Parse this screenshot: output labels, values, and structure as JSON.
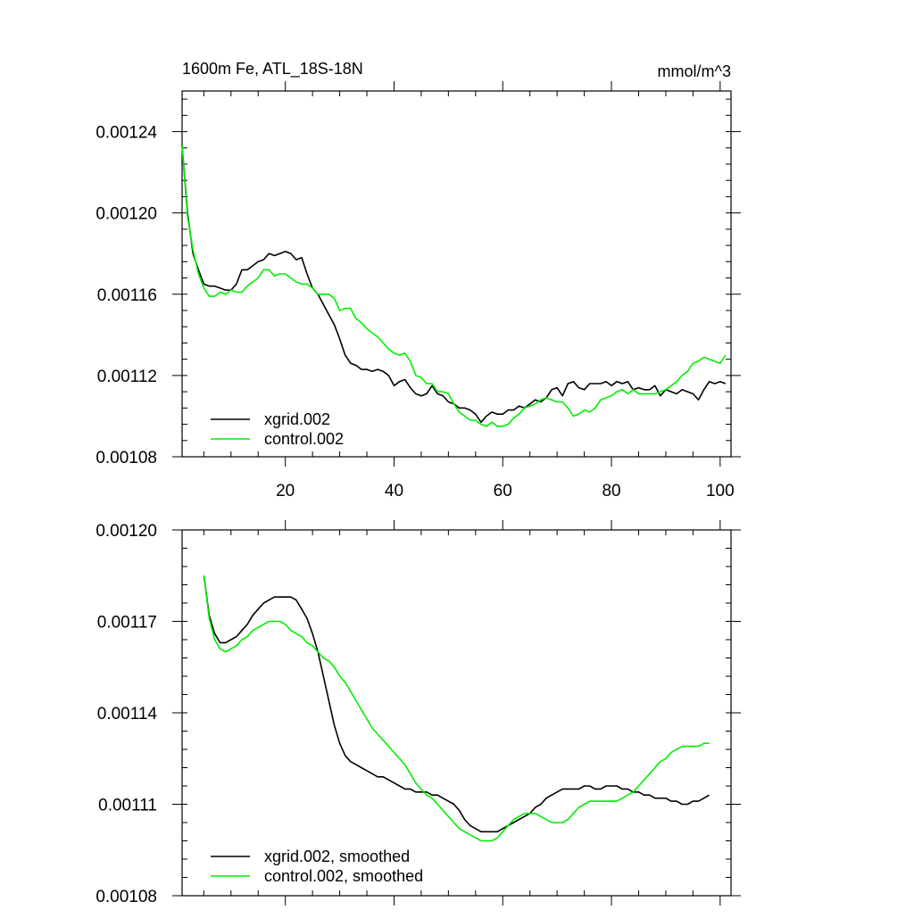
{
  "chart_data": [
    {
      "type": "line",
      "title": "1600m Fe, ATL_18S-18N",
      "units": "mmol/m^3",
      "xlim": [
        1,
        102
      ],
      "ylim": [
        0.00108,
        0.00126
      ],
      "xticks": [
        20,
        40,
        60,
        80,
        100
      ],
      "xtick_labels": [
        "20",
        "40",
        "60",
        "80",
        "100"
      ],
      "yticks": [
        0.00108,
        0.00112,
        0.00116,
        0.0012,
        0.00124
      ],
      "ytick_labels": [
        "0.00108",
        "0.00112",
        "0.00116",
        "0.00120",
        "0.00124"
      ],
      "legend_position": "bottom-left",
      "series": [
        {
          "name": "xgrid.002",
          "color": "#000000",
          "x": [
            1,
            2,
            3,
            4,
            5,
            6,
            7,
            8,
            9,
            10,
            11,
            12,
            13,
            14,
            15,
            16,
            17,
            18,
            19,
            20,
            21,
            22,
            23,
            24,
            25,
            26,
            27,
            28,
            29,
            30,
            31,
            32,
            33,
            34,
            35,
            36,
            37,
            38,
            39,
            40,
            41,
            42,
            43,
            44,
            45,
            46,
            47,
            48,
            49,
            50,
            51,
            52,
            53,
            54,
            55,
            56,
            57,
            58,
            59,
            60,
            61,
            62,
            63,
            64,
            65,
            66,
            67,
            68,
            69,
            70,
            71,
            72,
            73,
            74,
            75,
            76,
            77,
            78,
            79,
            80,
            81,
            82,
            83,
            84,
            85,
            86,
            87,
            88,
            89,
            90,
            91,
            92,
            93,
            94,
            95,
            96,
            97,
            98,
            99,
            100,
            101
          ],
          "values": [
            0.001233,
            0.0012,
            0.00118,
            0.001172,
            0.001165,
            0.001164,
            0.001164,
            0.001163,
            0.001162,
            0.001162,
            0.001165,
            0.001172,
            0.001172,
            0.001174,
            0.001176,
            0.001177,
            0.00118,
            0.001179,
            0.00118,
            0.001181,
            0.00118,
            0.001177,
            0.001178,
            0.00117,
            0.001163,
            0.00116,
            0.001155,
            0.00115,
            0.001145,
            0.001138,
            0.00113,
            0.001126,
            0.001125,
            0.001123,
            0.001123,
            0.001122,
            0.001123,
            0.001122,
            0.00112,
            0.001115,
            0.001117,
            0.001118,
            0.001114,
            0.001111,
            0.00111,
            0.001111,
            0.001115,
            0.001111,
            0.00111,
            0.001107,
            0.001106,
            0.001104,
            0.001104,
            0.001103,
            0.001101,
            0.001097,
            0.0011,
            0.001102,
            0.001101,
            0.001101,
            0.001103,
            0.001103,
            0.001105,
            0.001104,
            0.001106,
            0.001108,
            0.001107,
            0.001109,
            0.001113,
            0.001114,
            0.00111,
            0.001116,
            0.001117,
            0.001114,
            0.001113,
            0.001116,
            0.001116,
            0.001116,
            0.001117,
            0.001115,
            0.001117,
            0.001116,
            0.001117,
            0.001113,
            0.001114,
            0.001113,
            0.001113,
            0.001115,
            0.00111,
            0.001113,
            0.001112,
            0.001111,
            0.001113,
            0.001112,
            0.001111,
            0.001108,
            0.001113,
            0.001117,
            0.001116,
            0.001117,
            0.001116
          ]
        },
        {
          "name": "control.002",
          "color": "#00ee00",
          "x": [
            1,
            2,
            3,
            4,
            5,
            6,
            7,
            8,
            9,
            10,
            11,
            12,
            13,
            14,
            15,
            16,
            17,
            18,
            19,
            20,
            21,
            22,
            23,
            24,
            25,
            26,
            27,
            28,
            29,
            30,
            31,
            32,
            33,
            34,
            35,
            36,
            37,
            38,
            39,
            40,
            41,
            42,
            43,
            44,
            45,
            46,
            47,
            48,
            49,
            50,
            51,
            52,
            53,
            54,
            55,
            56,
            57,
            58,
            59,
            60,
            61,
            62,
            63,
            64,
            65,
            66,
            67,
            68,
            69,
            70,
            71,
            72,
            73,
            74,
            75,
            76,
            77,
            78,
            79,
            80,
            81,
            82,
            83,
            84,
            85,
            86,
            87,
            88,
            89,
            90,
            91,
            92,
            93,
            94,
            95,
            96,
            97,
            98,
            99,
            100,
            101
          ],
          "values": [
            0.001233,
            0.001198,
            0.001182,
            0.00117,
            0.001163,
            0.001159,
            0.001159,
            0.001161,
            0.00116,
            0.001162,
            0.001161,
            0.001161,
            0.001164,
            0.001166,
            0.001168,
            0.001172,
            0.001172,
            0.001169,
            0.00117,
            0.00117,
            0.001168,
            0.001166,
            0.001165,
            0.001165,
            0.001163,
            0.00116,
            0.00116,
            0.00116,
            0.001158,
            0.001152,
            0.001153,
            0.001153,
            0.001148,
            0.001146,
            0.001143,
            0.001141,
            0.001139,
            0.001136,
            0.001133,
            0.001131,
            0.00113,
            0.001131,
            0.001127,
            0.00112,
            0.001119,
            0.001116,
            0.001116,
            0.001112,
            0.001112,
            0.001111,
            0.001106,
            0.001102,
            0.0011,
            0.001098,
            0.001098,
            0.001096,
            0.001095,
            0.001097,
            0.001095,
            0.001095,
            0.001096,
            0.001099,
            0.001101,
            0.001104,
            0.001105,
            0.001106,
            0.001108,
            0.001109,
            0.001108,
            0.001107,
            0.001107,
            0.001104,
            0.0011,
            0.001101,
            0.001103,
            0.001102,
            0.001104,
            0.001108,
            0.001109,
            0.00111,
            0.001112,
            0.001113,
            0.001111,
            0.001113,
            0.001111,
            0.001111,
            0.001111,
            0.001111,
            0.001112,
            0.001113,
            0.001115,
            0.001117,
            0.00112,
            0.001122,
            0.001126,
            0.001127,
            0.001129,
            0.001128,
            0.001127,
            0.001126,
            0.00113
          ]
        }
      ]
    },
    {
      "type": "line",
      "title": "",
      "xlim": [
        1,
        102
      ],
      "ylim": [
        0.00108,
        0.0012
      ],
      "xticks": [
        20,
        40,
        60,
        80,
        100
      ],
      "xtick_labels": [],
      "yticks": [
        0.00108,
        0.00111,
        0.00114,
        0.00117,
        0.0012
      ],
      "ytick_labels": [
        "0.00108",
        "0.00111",
        "0.00114",
        "0.00117",
        "0.00120"
      ],
      "legend_position": "bottom-left",
      "series": [
        {
          "name": "xgrid.002, smoothed",
          "color": "#000000",
          "x": [
            5,
            6,
            7,
            8,
            9,
            10,
            11,
            12,
            13,
            14,
            15,
            16,
            17,
            18,
            19,
            20,
            21,
            22,
            23,
            24,
            25,
            26,
            27,
            28,
            29,
            30,
            31,
            32,
            33,
            34,
            35,
            36,
            37,
            38,
            39,
            40,
            41,
            42,
            43,
            44,
            45,
            46,
            47,
            48,
            49,
            50,
            51,
            52,
            53,
            54,
            55,
            56,
            57,
            58,
            59,
            60,
            61,
            62,
            63,
            64,
            65,
            66,
            67,
            68,
            69,
            70,
            71,
            72,
            73,
            74,
            75,
            76,
            77,
            78,
            79,
            80,
            81,
            82,
            83,
            84,
            85,
            86,
            87,
            88,
            89,
            90,
            91,
            92,
            93,
            94,
            95,
            96,
            97,
            98
          ],
          "values": [
            0.001185,
            0.001172,
            0.001166,
            0.001163,
            0.001163,
            0.001164,
            0.001165,
            0.001167,
            0.001169,
            0.001172,
            0.001174,
            0.001176,
            0.001177,
            0.001178,
            0.001178,
            0.001178,
            0.001178,
            0.001177,
            0.001174,
            0.001171,
            0.001166,
            0.00116,
            0.001152,
            0.001144,
            0.001136,
            0.00113,
            0.001126,
            0.001124,
            0.001123,
            0.001122,
            0.001121,
            0.00112,
            0.001119,
            0.001119,
            0.001118,
            0.001117,
            0.001116,
            0.001115,
            0.001115,
            0.001114,
            0.001114,
            0.001114,
            0.001113,
            0.001113,
            0.001112,
            0.001111,
            0.00111,
            0.001108,
            0.001105,
            0.001103,
            0.001102,
            0.001101,
            0.001101,
            0.001101,
            0.001101,
            0.001102,
            0.001103,
            0.001104,
            0.001105,
            0.001106,
            0.001107,
            0.001109,
            0.00111,
            0.001112,
            0.001113,
            0.001114,
            0.001115,
            0.001115,
            0.001115,
            0.001115,
            0.001116,
            0.001116,
            0.001115,
            0.001115,
            0.001116,
            0.001116,
            0.001116,
            0.001115,
            0.001115,
            0.001114,
            0.001114,
            0.001113,
            0.001113,
            0.001112,
            0.001112,
            0.001112,
            0.001111,
            0.001111,
            0.00111,
            0.00111,
            0.001111,
            0.001111,
            0.001112,
            0.001113
          ]
        },
        {
          "name": "control.002, smoothed",
          "color": "#00ee00",
          "x": [
            5,
            6,
            7,
            8,
            9,
            10,
            11,
            12,
            13,
            14,
            15,
            16,
            17,
            18,
            19,
            20,
            21,
            22,
            23,
            24,
            25,
            26,
            27,
            28,
            29,
            30,
            31,
            32,
            33,
            34,
            35,
            36,
            37,
            38,
            39,
            40,
            41,
            42,
            43,
            44,
            45,
            46,
            47,
            48,
            49,
            50,
            51,
            52,
            53,
            54,
            55,
            56,
            57,
            58,
            59,
            60,
            61,
            62,
            63,
            64,
            65,
            66,
            67,
            68,
            69,
            70,
            71,
            72,
            73,
            74,
            75,
            76,
            77,
            78,
            79,
            80,
            81,
            82,
            83,
            84,
            85,
            86,
            87,
            88,
            89,
            90,
            91,
            92,
            93,
            94,
            95,
            96,
            97,
            98
          ],
          "values": [
            0.001185,
            0.001171,
            0.001164,
            0.001161,
            0.00116,
            0.001161,
            0.001162,
            0.001164,
            0.001165,
            0.001167,
            0.001168,
            0.001169,
            0.00117,
            0.00117,
            0.00117,
            0.001169,
            0.001167,
            0.001166,
            0.001165,
            0.001163,
            0.001162,
            0.00116,
            0.001158,
            0.001157,
            0.001155,
            0.001152,
            0.00115,
            0.001147,
            0.001144,
            0.001141,
            0.001138,
            0.001135,
            0.001133,
            0.001131,
            0.001129,
            0.001127,
            0.001125,
            0.001123,
            0.00112,
            0.001117,
            0.001115,
            0.001113,
            0.001112,
            0.00111,
            0.001108,
            0.001106,
            0.001104,
            0.001102,
            0.001101,
            0.0011,
            0.001099,
            0.001098,
            0.001098,
            0.001098,
            0.001099,
            0.001101,
            0.001103,
            0.001105,
            0.001106,
            0.001107,
            0.001107,
            0.001107,
            0.001106,
            0.001105,
            0.001104,
            0.001104,
            0.001104,
            0.001105,
            0.001107,
            0.001109,
            0.00111,
            0.001111,
            0.001111,
            0.001111,
            0.001111,
            0.001111,
            0.001111,
            0.001112,
            0.001113,
            0.001114,
            0.001116,
            0.001118,
            0.00112,
            0.001122,
            0.001124,
            0.001125,
            0.001127,
            0.001128,
            0.001129,
            0.001129,
            0.001129,
            0.001129,
            0.00113,
            0.00113
          ]
        }
      ]
    }
  ]
}
